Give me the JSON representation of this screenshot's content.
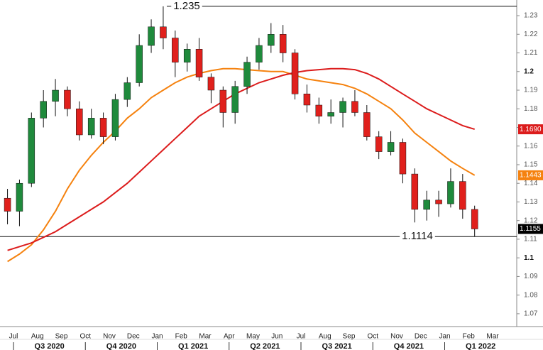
{
  "chart_data": {
    "type": "candlestick",
    "categories": [
      null,
      "Jul",
      null,
      "Aug",
      null,
      "Sep",
      null,
      "Oct",
      null,
      "Nov",
      null,
      "Dec",
      null,
      "Jan",
      null,
      "Feb",
      null,
      "Mar",
      null,
      "Apr",
      null,
      "May",
      null,
      "Jun",
      null,
      "Jul",
      null,
      "Aug",
      null,
      "Sep",
      null,
      "Oct",
      null,
      "Nov",
      null,
      "Dec",
      null,
      "Jan",
      null,
      "Feb",
      null,
      "Mar"
    ],
    "quarters": [
      "Q3 2020",
      "Q4 2020",
      "Q1 2021",
      "Q2 2021",
      "Q3 2021",
      "Q4 2021",
      "Q1 2022"
    ],
    "ohlc": {
      "up_color": "#1f8a3c",
      "down_color": "#e0201c",
      "open": [
        1.132,
        1.125,
        1.14,
        1.175,
        1.184,
        1.19,
        1.18,
        1.166,
        1.175,
        1.165,
        1.185,
        1.194,
        1.214,
        1.224,
        1.218,
        1.205,
        1.212,
        1.197,
        1.19,
        1.178,
        1.192,
        1.205,
        1.214,
        1.22,
        1.21,
        1.188,
        1.182,
        1.176,
        1.178,
        1.184,
        1.178,
        1.165,
        1.157,
        1.162,
        1.145,
        1.126,
        1.131,
        1.129,
        1.141,
        1.126,
        null,
        null
      ],
      "high": [
        1.137,
        1.142,
        1.178,
        1.19,
        1.196,
        1.192,
        1.184,
        1.18,
        1.178,
        1.188,
        1.197,
        1.22,
        1.228,
        1.235,
        1.222,
        1.215,
        1.218,
        1.199,
        1.192,
        1.195,
        1.208,
        1.218,
        1.226,
        1.225,
        1.212,
        1.193,
        1.186,
        1.185,
        1.186,
        1.19,
        1.182,
        1.168,
        1.168,
        1.164,
        1.148,
        1.136,
        1.136,
        1.148,
        1.145,
        1.128,
        null,
        null
      ],
      "low": [
        1.118,
        1.117,
        1.138,
        1.17,
        1.176,
        1.176,
        1.163,
        1.164,
        1.161,
        1.163,
        1.181,
        1.192,
        1.21,
        1.212,
        1.197,
        1.2,
        1.195,
        1.183,
        1.17,
        1.172,
        1.188,
        1.201,
        1.21,
        1.205,
        1.185,
        1.178,
        1.172,
        1.172,
        1.17,
        1.176,
        1.163,
        1.153,
        1.155,
        1.14,
        1.119,
        1.12,
        1.122,
        1.127,
        1.121,
        1.1114,
        null,
        null
      ],
      "close": [
        1.125,
        1.14,
        1.175,
        1.184,
        1.19,
        1.18,
        1.166,
        1.175,
        1.165,
        1.185,
        1.194,
        1.214,
        1.224,
        1.218,
        1.205,
        1.212,
        1.197,
        1.19,
        1.178,
        1.192,
        1.205,
        1.214,
        1.22,
        1.21,
        1.188,
        1.182,
        1.176,
        1.178,
        1.184,
        1.178,
        1.165,
        1.157,
        1.162,
        1.145,
        1.126,
        1.131,
        1.129,
        1.141,
        1.126,
        1.1155,
        null,
        null
      ]
    },
    "series": [
      {
        "color": "#f5820f",
        "values": [
          1.098,
          1.102,
          1.107,
          1.115,
          1.125,
          1.137,
          1.147,
          1.155,
          1.162,
          1.168,
          1.175,
          1.18,
          1.186,
          1.19,
          1.194,
          1.197,
          1.199,
          1.2005,
          1.2015,
          1.2015,
          1.201,
          1.2005,
          1.2,
          1.2,
          1.198,
          1.196,
          1.195,
          1.194,
          1.193,
          1.191,
          1.188,
          1.184,
          1.18,
          1.174,
          1.167,
          1.162,
          1.157,
          1.152,
          1.148,
          1.1443,
          null,
          null
        ]
      },
      {
        "color": "#dc1c1c",
        "values": [
          1.104,
          1.106,
          1.108,
          1.111,
          1.114,
          1.118,
          1.122,
          1.126,
          1.13,
          1.135,
          1.14,
          1.146,
          1.152,
          1.158,
          1.164,
          1.17,
          1.176,
          1.18,
          1.184,
          1.188,
          1.191,
          1.194,
          1.196,
          1.198,
          1.1995,
          1.2005,
          1.201,
          1.2015,
          1.2015,
          1.201,
          1.199,
          1.196,
          1.192,
          1.188,
          1.184,
          1.18,
          1.177,
          1.174,
          1.171,
          1.169,
          null,
          null
        ]
      }
    ],
    "levels": [
      1.235,
      1.1114
    ],
    "price_tags": [
      {
        "value": 1.169,
        "label": "1.1690",
        "color": "#dc1c1c"
      },
      {
        "value": 1.1443,
        "label": "1.1443",
        "color": "#f5820f"
      },
      {
        "value": 1.1155,
        "label": "1.1155",
        "color": "#000000"
      }
    ],
    "ylim": [
      1.0631,
      1.2384
    ],
    "yticks": [
      1.07,
      1.08,
      1.09,
      1.1,
      1.11,
      1.12,
      1.13,
      1.14,
      1.15,
      1.16,
      1.17,
      1.18,
      1.19,
      1.2,
      1.21,
      1.22,
      1.23
    ]
  }
}
